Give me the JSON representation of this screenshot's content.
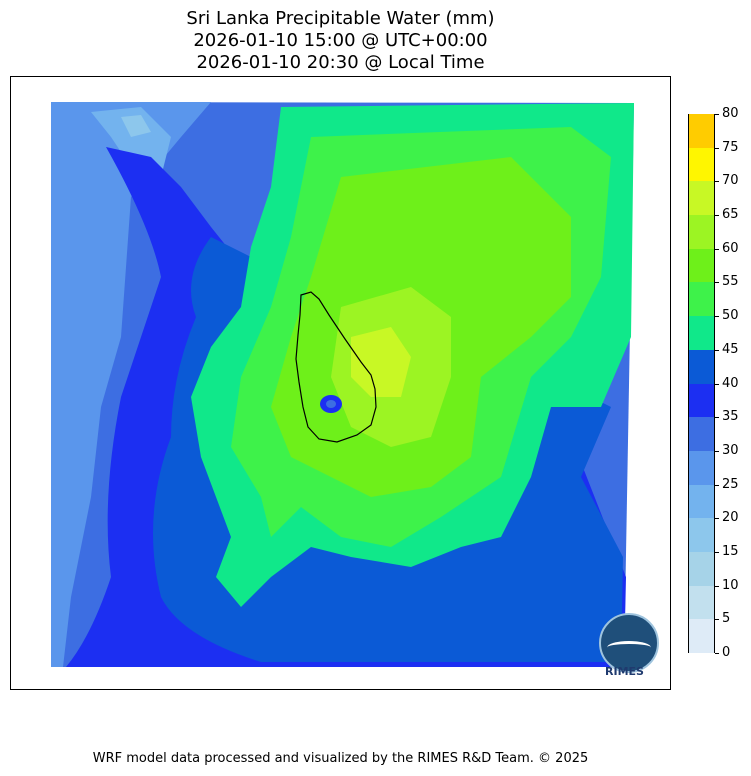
{
  "title": {
    "line1": "Sri Lanka Precipitable Water (mm)",
    "line2": "2026-01-10 15:00 @ UTC+00:00",
    "line3": "2026-01-10 20:30 @ Local Time"
  },
  "colorbar": {
    "min": 0,
    "max": 80,
    "levels": [
      {
        "value": 0,
        "label": "0",
        "color": "#deebf7"
      },
      {
        "value": 5,
        "label": "5",
        "color": "#c2e0ee"
      },
      {
        "value": 10,
        "label": "10",
        "color": "#a6d3e8"
      },
      {
        "value": 15,
        "label": "15",
        "color": "#8dc7ec"
      },
      {
        "value": 20,
        "label": "20",
        "color": "#73b3ee"
      },
      {
        "value": 25,
        "label": "25",
        "color": "#5a96ec"
      },
      {
        "value": 30,
        "label": "30",
        "color": "#3d6ee2"
      },
      {
        "value": 35,
        "label": "35",
        "color": "#1c2ff2"
      },
      {
        "value": 40,
        "label": "40",
        "color": "#0b5ad6"
      },
      {
        "value": 45,
        "label": "45",
        "color": "#10e88a"
      },
      {
        "value": 50,
        "label": "50",
        "color": "#3ef24a"
      },
      {
        "value": 55,
        "label": "55",
        "color": "#6ef01a"
      },
      {
        "value": 60,
        "label": "60",
        "color": "#9cf423"
      },
      {
        "value": 65,
        "label": "65",
        "color": "#c8f825"
      },
      {
        "value": 70,
        "label": "70",
        "color": "#fff600"
      },
      {
        "value": 75,
        "label": "75",
        "color": "#ffcc00"
      },
      {
        "value": 80,
        "label": "80",
        "color": null
      }
    ]
  },
  "logo": {
    "text": "RIMES"
  },
  "footer": "WRF model data processed and visualized by the RIMES R&D Team. © 2025"
}
